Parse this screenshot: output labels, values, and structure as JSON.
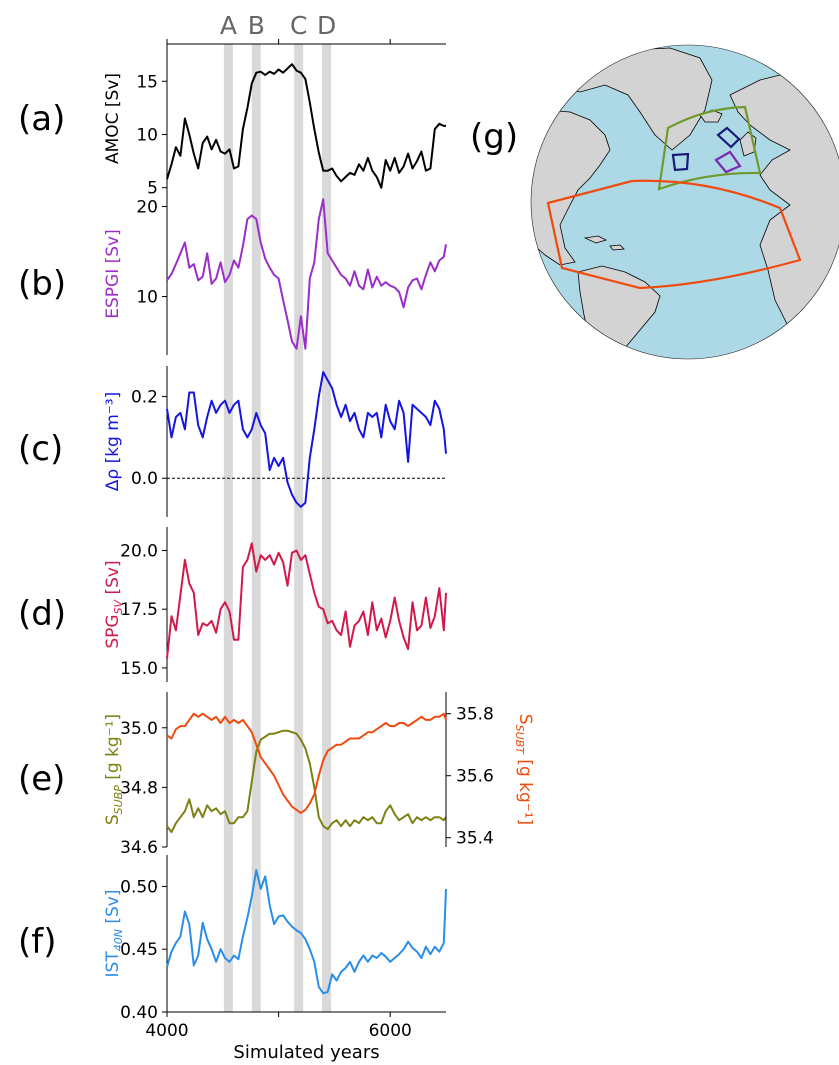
{
  "figure": {
    "xlabel": "Simulated years",
    "xticks": [
      4000,
      6000
    ],
    "xlim": [
      4000,
      6500
    ],
    "event_markers": [
      {
        "label": "A",
        "year": 4550
      },
      {
        "label": "B",
        "year": 4800
      },
      {
        "label": "C",
        "year": 5180
      },
      {
        "label": "D",
        "year": 5430
      }
    ],
    "shading_color": "#d9d9d9"
  },
  "chart_data": [
    {
      "type": "line",
      "panel_label": "(a)",
      "ylabel": "AMOC [Sv]",
      "ylabel_color": "#000000",
      "ylim": [
        4.5,
        18.5
      ],
      "yticks": [
        5,
        10,
        15
      ],
      "series": [
        {
          "color": "#000000",
          "x": [
            4000,
            4040,
            4080,
            4120,
            4160,
            4200,
            4240,
            4280,
            4320,
            4360,
            4400,
            4440,
            4480,
            4520,
            4560,
            4600,
            4640,
            4680,
            4720,
            4760,
            4800,
            4840,
            4880,
            4920,
            4960,
            5000,
            5040,
            5080,
            5120,
            5160,
            5200,
            5240,
            5280,
            5320,
            5360,
            5400,
            5440,
            5480,
            5520,
            5560,
            5600,
            5640,
            5680,
            5720,
            5760,
            5800,
            5840,
            5880,
            5920,
            5960,
            6000,
            6040,
            6080,
            6120,
            6160,
            6200,
            6240,
            6280,
            6320,
            6360,
            6400,
            6440,
            6480,
            6500
          ],
          "y": [
            5.8,
            7.2,
            8.8,
            8.0,
            11.5,
            10.0,
            8.2,
            6.8,
            9.2,
            9.8,
            8.6,
            9.5,
            8.4,
            8.2,
            8.6,
            6.8,
            7.0,
            10.5,
            12.5,
            14.8,
            15.8,
            15.9,
            15.6,
            15.9,
            15.7,
            16.1,
            15.8,
            16.2,
            16.6,
            16.0,
            15.8,
            15.2,
            13.0,
            10.5,
            8.3,
            6.6,
            6.6,
            6.8,
            6.1,
            5.6,
            6.0,
            6.4,
            6.2,
            7.2,
            6.6,
            7.8,
            6.6,
            6.0,
            5.0,
            7.6,
            6.6,
            7.8,
            6.4,
            7.0,
            8.2,
            6.8,
            7.5,
            8.4,
            6.6,
            6.8,
            10.5,
            11.0,
            10.8,
            10.8
          ]
        }
      ]
    },
    {
      "type": "line",
      "panel_label": "(b)",
      "ylabel": "ESPGI [Sv]",
      "ylabel_color": "#9b2ec9",
      "ylim": [
        3.5,
        21.5
      ],
      "yticks": [
        10,
        20
      ],
      "series": [
        {
          "color": "#9b2ec9",
          "x": [
            4000,
            4040,
            4080,
            4120,
            4160,
            4200,
            4240,
            4280,
            4320,
            4360,
            4400,
            4440,
            4480,
            4520,
            4560,
            4600,
            4640,
            4680,
            4720,
            4760,
            4800,
            4840,
            4880,
            4920,
            4960,
            5000,
            5040,
            5080,
            5120,
            5160,
            5200,
            5240,
            5280,
            5320,
            5360,
            5400,
            5440,
            5480,
            5520,
            5560,
            5600,
            5640,
            5680,
            5720,
            5760,
            5800,
            5840,
            5880,
            5920,
            5960,
            6000,
            6040,
            6080,
            6120,
            6160,
            6200,
            6240,
            6280,
            6320,
            6360,
            6400,
            6440,
            6480,
            6500
          ],
          "y": [
            11.8,
            12.5,
            13.6,
            14.8,
            16.0,
            13.2,
            13.6,
            11.8,
            12.2,
            14.8,
            11.4,
            12.0,
            13.8,
            11.6,
            12.4,
            14.0,
            13.2,
            15.6,
            18.6,
            19.0,
            18.6,
            16.0,
            14.2,
            13.2,
            12.4,
            12.0,
            9.6,
            7.4,
            5.0,
            4.2,
            7.8,
            4.2,
            12.0,
            13.8,
            18.6,
            20.8,
            14.8,
            14.0,
            13.2,
            12.4,
            12.0,
            11.2,
            12.8,
            11.2,
            10.8,
            13.0,
            11.0,
            12.2,
            11.2,
            11.6,
            11.2,
            11.0,
            10.5,
            8.8,
            11.0,
            11.8,
            12.0,
            10.8,
            12.4,
            13.8,
            12.8,
            14.0,
            14.4,
            15.8
          ]
        }
      ]
    },
    {
      "type": "line",
      "panel_label": "(c)",
      "ylabel": "Δρ [kg m⁻³]",
      "ylabel_color": "#1515e0",
      "ylim": [
        -0.095,
        0.275
      ],
      "yticks": [
        0.0,
        0.2
      ],
      "zero_line": true,
      "series": [
        {
          "color": "#1515e0",
          "x": [
            4000,
            4040,
            4080,
            4120,
            4160,
            4200,
            4240,
            4280,
            4320,
            4360,
            4400,
            4440,
            4480,
            4520,
            4560,
            4600,
            4640,
            4680,
            4720,
            4760,
            4800,
            4840,
            4880,
            4920,
            4960,
            5000,
            5040,
            5080,
            5120,
            5160,
            5200,
            5240,
            5280,
            5320,
            5360,
            5400,
            5440,
            5480,
            5520,
            5560,
            5600,
            5640,
            5680,
            5720,
            5760,
            5800,
            5840,
            5880,
            5920,
            5960,
            6000,
            6040,
            6080,
            6120,
            6160,
            6200,
            6240,
            6280,
            6320,
            6360,
            6400,
            6440,
            6480,
            6500
          ],
          "y": [
            0.17,
            0.1,
            0.15,
            0.16,
            0.12,
            0.21,
            0.21,
            0.13,
            0.1,
            0.15,
            0.19,
            0.16,
            0.18,
            0.19,
            0.16,
            0.18,
            0.19,
            0.12,
            0.1,
            0.12,
            0.16,
            0.13,
            0.11,
            0.02,
            0.05,
            0.03,
            0.05,
            -0.01,
            -0.04,
            -0.06,
            -0.07,
            -0.06,
            0.05,
            0.12,
            0.2,
            0.26,
            0.24,
            0.22,
            0.18,
            0.15,
            0.18,
            0.14,
            0.16,
            0.12,
            0.1,
            0.16,
            0.15,
            0.16,
            0.1,
            0.18,
            0.14,
            0.12,
            0.19,
            0.16,
            0.04,
            0.18,
            0.17,
            0.16,
            0.15,
            0.13,
            0.19,
            0.17,
            0.12,
            0.06
          ]
        }
      ]
    },
    {
      "type": "line",
      "panel_label": "(d)",
      "ylabel": "SPG",
      "ylabel_sub": "SV",
      "ylabel_suffix": " [Sv]",
      "ylabel_color": "#d11a4a",
      "ylim": [
        14.4,
        21.0
      ],
      "yticks": [
        15.0,
        17.5,
        20.0
      ],
      "series": [
        {
          "color": "#d11a4a",
          "x": [
            4000,
            4040,
            4080,
            4120,
            4160,
            4200,
            4240,
            4280,
            4320,
            4360,
            4400,
            4440,
            4480,
            4520,
            4560,
            4600,
            4640,
            4680,
            4720,
            4760,
            4800,
            4840,
            4880,
            4920,
            4960,
            5000,
            5040,
            5080,
            5120,
            5160,
            5200,
            5240,
            5280,
            5320,
            5360,
            5400,
            5440,
            5480,
            5520,
            5560,
            5600,
            5640,
            5680,
            5720,
            5760,
            5800,
            5840,
            5880,
            5920,
            5960,
            6000,
            6040,
            6080,
            6120,
            6160,
            6200,
            6240,
            6280,
            6320,
            6360,
            6400,
            6440,
            6480,
            6500
          ],
          "y": [
            15.4,
            17.2,
            16.6,
            18.1,
            19.6,
            18.6,
            18.2,
            16.4,
            16.9,
            16.8,
            17.0,
            16.5,
            17.5,
            17.8,
            17.4,
            16.2,
            16.2,
            19.3,
            19.6,
            20.3,
            19.1,
            19.8,
            19.6,
            19.8,
            19.4,
            19.9,
            19.5,
            18.5,
            19.9,
            20.0,
            19.6,
            19.8,
            19.0,
            18.2,
            17.6,
            17.5,
            16.9,
            17.0,
            16.6,
            16.4,
            17.4,
            15.9,
            16.8,
            17.0,
            17.4,
            16.4,
            17.8,
            16.6,
            17.1,
            16.3,
            17.0,
            18.0,
            17.0,
            16.3,
            15.8,
            17.8,
            16.6,
            16.8,
            18.0,
            16.7,
            17.2,
            18.4,
            16.6,
            18.2
          ]
        }
      ]
    },
    {
      "type": "line",
      "panel_label": "(e)",
      "ylabel": "S",
      "ylabel_sub": "SUBP",
      "ylabel_suffix": " [g kg⁻¹]",
      "ylabel_color": "#7d8012",
      "ylim": [
        34.6,
        35.12
      ],
      "yticks": [
        34.6,
        34.8,
        35.0
      ],
      "series": [
        {
          "color": "#7d8012",
          "axis": "left",
          "x": [
            4000,
            4040,
            4080,
            4120,
            4160,
            4200,
            4240,
            4280,
            4320,
            4360,
            4400,
            4440,
            4480,
            4520,
            4560,
            4600,
            4640,
            4680,
            4720,
            4760,
            4800,
            4840,
            4880,
            4920,
            4960,
            5000,
            5040,
            5080,
            5120,
            5160,
            5200,
            5240,
            5280,
            5320,
            5360,
            5400,
            5440,
            5480,
            5520,
            5560,
            5600,
            5640,
            5680,
            5720,
            5760,
            5800,
            5840,
            5880,
            5920,
            5960,
            6000,
            6040,
            6080,
            6120,
            6160,
            6200,
            6240,
            6280,
            6320,
            6360,
            6400,
            6440,
            6480,
            6500
          ],
          "y": [
            34.67,
            34.65,
            34.68,
            34.7,
            34.72,
            34.76,
            34.7,
            34.73,
            34.7,
            34.74,
            34.72,
            34.73,
            34.71,
            34.72,
            34.68,
            34.68,
            34.7,
            34.7,
            34.72,
            34.82,
            34.92,
            34.96,
            34.97,
            34.98,
            34.98,
            34.985,
            34.99,
            34.99,
            34.985,
            34.98,
            34.96,
            34.93,
            34.88,
            34.8,
            34.7,
            34.67,
            34.66,
            34.68,
            34.69,
            34.67,
            34.69,
            34.67,
            34.69,
            34.68,
            34.7,
            34.69,
            34.7,
            34.68,
            34.68,
            34.72,
            34.74,
            34.71,
            34.69,
            34.7,
            34.71,
            34.68,
            34.7,
            34.69,
            34.7,
            34.69,
            34.7,
            34.7,
            34.69,
            34.7
          ]
        },
        {
          "color": "#f04b0f",
          "axis": "right",
          "right_ylabel": "S",
          "right_ylabel_sub": "SUBT",
          "right_ylabel_suffix": " [g kg⁻¹]",
          "right_ylim": [
            35.37,
            35.87
          ],
          "right_yticks": [
            35.4,
            35.6,
            35.8
          ],
          "x": [
            4000,
            4040,
            4080,
            4120,
            4160,
            4200,
            4240,
            4280,
            4320,
            4360,
            4400,
            4440,
            4480,
            4520,
            4560,
            4600,
            4640,
            4680,
            4720,
            4760,
            4800,
            4840,
            4880,
            4920,
            4960,
            5000,
            5040,
            5080,
            5120,
            5160,
            5200,
            5240,
            5280,
            5320,
            5360,
            5400,
            5440,
            5480,
            5520,
            5560,
            5600,
            5640,
            5680,
            5720,
            5760,
            5800,
            5840,
            5880,
            5920,
            5960,
            6000,
            6040,
            6080,
            6120,
            6160,
            6200,
            6240,
            6280,
            6320,
            6360,
            6400,
            6440,
            6480,
            6500
          ],
          "y": [
            35.73,
            35.72,
            35.75,
            35.76,
            35.76,
            35.78,
            35.8,
            35.79,
            35.8,
            35.79,
            35.78,
            35.79,
            35.77,
            35.79,
            35.77,
            35.78,
            35.77,
            35.78,
            35.76,
            35.74,
            35.7,
            35.66,
            35.64,
            35.62,
            35.6,
            35.57,
            35.54,
            35.52,
            35.5,
            35.49,
            35.48,
            35.49,
            35.51,
            35.54,
            35.6,
            35.65,
            35.68,
            35.69,
            35.7,
            35.7,
            35.71,
            35.72,
            35.72,
            35.72,
            35.73,
            35.74,
            35.74,
            35.75,
            35.76,
            35.77,
            35.76,
            35.76,
            35.77,
            35.77,
            35.76,
            35.77,
            35.78,
            35.79,
            35.78,
            35.78,
            35.79,
            35.79,
            35.8,
            35.78
          ]
        }
      ]
    },
    {
      "type": "line",
      "panel_label": "(f)",
      "ylabel": "IST",
      "ylabel_sub": "40N",
      "ylabel_suffix": " [Sv]",
      "ylabel_color": "#2a8ee8",
      "ylim": [
        0.4,
        0.525
      ],
      "yticks": [
        0.4,
        0.45,
        0.5
      ],
      "series": [
        {
          "color": "#2a8ee8",
          "x": [
            4000,
            4040,
            4080,
            4120,
            4160,
            4200,
            4240,
            4280,
            4320,
            4360,
            4400,
            4440,
            4480,
            4520,
            4560,
            4600,
            4640,
            4680,
            4720,
            4760,
            4800,
            4840,
            4880,
            4920,
            4960,
            5000,
            5040,
            5080,
            5120,
            5160,
            5200,
            5240,
            5280,
            5320,
            5360,
            5400,
            5440,
            5480,
            5520,
            5560,
            5600,
            5640,
            5680,
            5720,
            5760,
            5800,
            5840,
            5880,
            5920,
            5960,
            6000,
            6040,
            6080,
            6120,
            6160,
            6200,
            6240,
            6280,
            6320,
            6360,
            6400,
            6440,
            6480,
            6500
          ],
          "y": [
            0.436,
            0.448,
            0.455,
            0.46,
            0.48,
            0.47,
            0.437,
            0.445,
            0.471,
            0.458,
            0.45,
            0.44,
            0.45,
            0.443,
            0.44,
            0.445,
            0.442,
            0.46,
            0.475,
            0.492,
            0.513,
            0.498,
            0.508,
            0.485,
            0.47,
            0.476,
            0.477,
            0.472,
            0.468,
            0.465,
            0.463,
            0.458,
            0.45,
            0.44,
            0.42,
            0.415,
            0.416,
            0.43,
            0.425,
            0.432,
            0.435,
            0.44,
            0.432,
            0.44,
            0.445,
            0.44,
            0.445,
            0.443,
            0.447,
            0.444,
            0.44,
            0.443,
            0.446,
            0.45,
            0.456,
            0.451,
            0.448,
            0.443,
            0.452,
            0.446,
            0.452,
            0.448,
            0.455,
            0.498
          ]
        }
      ]
    }
  ],
  "map": {
    "panel_label": "(g)",
    "ocean_color": "#add8e6",
    "land_color": "#d3d3d3",
    "coast_color": "#000000",
    "box_colors": {
      "subpolar": "#6f9a2c",
      "subtropical": "#f04b0f",
      "navy": "#1a1a7a",
      "purple": "#7a2bb0"
    }
  }
}
